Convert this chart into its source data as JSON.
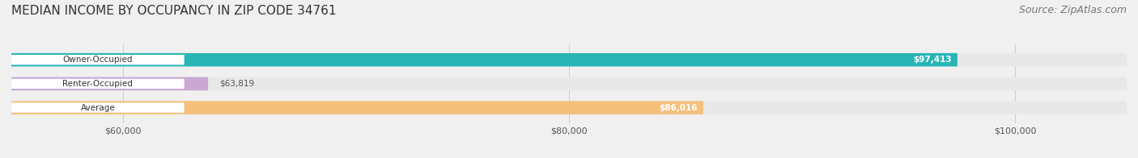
{
  "title": "MEDIAN INCOME BY OCCUPANCY IN ZIP CODE 34761",
  "source": "Source: ZipAtlas.com",
  "categories": [
    "Owner-Occupied",
    "Renter-Occupied",
    "Average"
  ],
  "values": [
    97413,
    63819,
    86016
  ],
  "bar_colors": [
    "#2ab5b5",
    "#c9a8d4",
    "#f5c07a"
  ],
  "label_color_on_bar": [
    "#ffffff",
    "#555555",
    "#ffffff"
  ],
  "value_labels": [
    "$97,413",
    "$63,819",
    "$86,016"
  ],
  "value_on_bar": [
    true,
    false,
    true
  ],
  "xlim": [
    55000,
    105000
  ],
  "xticks": [
    60000,
    80000,
    100000
  ],
  "xtick_labels": [
    "$60,000",
    "$80,000",
    "$100,000"
  ],
  "background_color": "#f0f0f0",
  "bar_background_color": "#e8e8e8",
  "title_fontsize": 11,
  "source_fontsize": 9,
  "bar_height": 0.55,
  "figsize": [
    14.06,
    1.96
  ],
  "dpi": 100
}
